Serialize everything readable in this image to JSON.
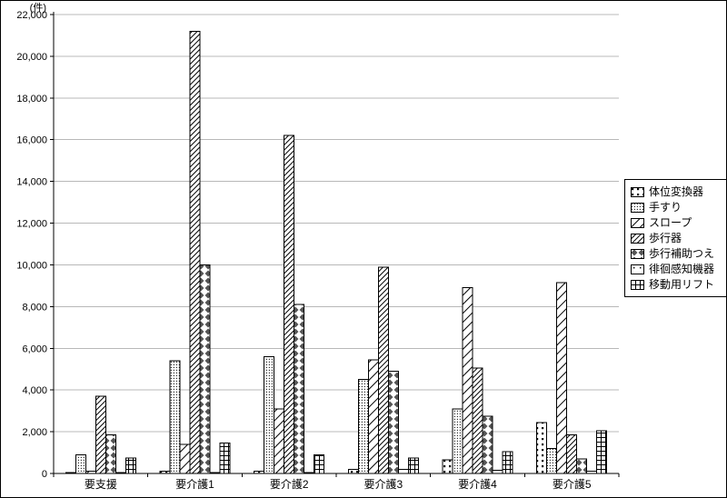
{
  "chart_data": {
    "type": "bar",
    "title": "",
    "unit_label": "(件)",
    "xlabel": "",
    "ylabel": "",
    "categories": [
      "要支援",
      "要介護1",
      "要介護2",
      "要介護3",
      "要介護4",
      "要介護5"
    ],
    "series": [
      {
        "name": "体位変換器",
        "pattern": "small-squares",
        "values": [
          50,
          100,
          100,
          200,
          650,
          2450
        ]
      },
      {
        "name": "手すり",
        "pattern": "fine-dots",
        "values": [
          900,
          5400,
          5600,
          4500,
          3100,
          1200
        ]
      },
      {
        "name": "スロープ",
        "pattern": "diagonal-wide",
        "values": [
          100,
          1400,
          3100,
          5450,
          8900,
          9150
        ]
      },
      {
        "name": "歩行器",
        "pattern": "diagonal-dense",
        "values": [
          3700,
          21200,
          16200,
          9900,
          5050,
          1850
        ]
      },
      {
        "name": "歩行補助つえ",
        "pattern": "diamonds",
        "values": [
          1850,
          10000,
          8100,
          4900,
          2750,
          700
        ]
      },
      {
        "name": "徘徊感知機器",
        "pattern": "sparse-dots",
        "values": [
          50,
          50,
          50,
          200,
          150,
          100
        ]
      },
      {
        "name": "移動用リフト",
        "pattern": "grid",
        "values": [
          750,
          1450,
          900,
          750,
          1050,
          2050
        ]
      }
    ],
    "ylim": [
      0,
      22000
    ],
    "ytick": 2000,
    "grid": true,
    "legend_position": "right",
    "bar_fill": "#ffffff",
    "axis_color": "#000000",
    "grid_color": "#b8b8b8"
  }
}
